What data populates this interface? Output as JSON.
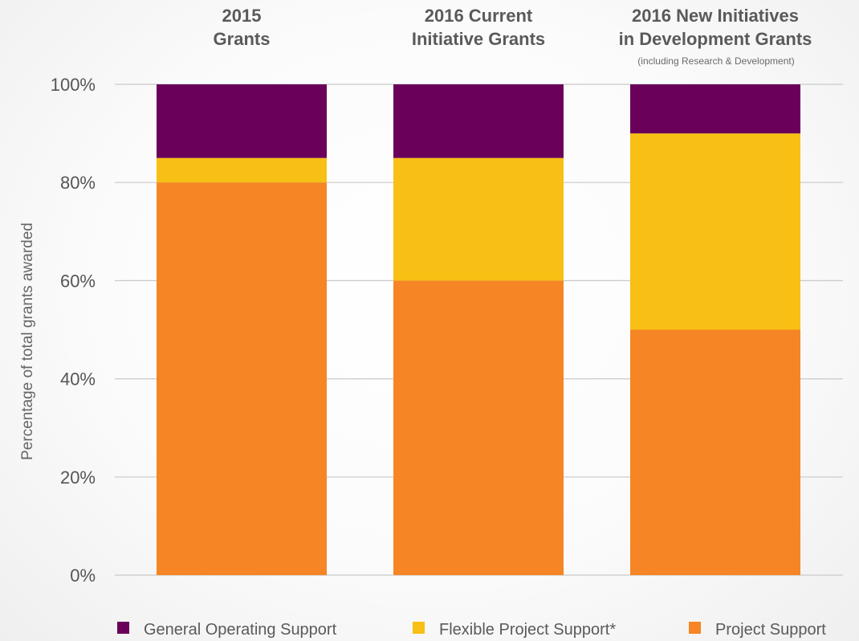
{
  "chart_data": {
    "type": "bar",
    "stacked": true,
    "categories": [
      {
        "lines": [
          "2015",
          "Grants"
        ],
        "note": ""
      },
      {
        "lines": [
          "2016 Current",
          "Initiative Grants"
        ],
        "note": ""
      },
      {
        "lines": [
          "2016 New Initiatives",
          "in Development Grants"
        ],
        "note": "(including Research & Development)"
      }
    ],
    "series": [
      {
        "name": "Project Support",
        "color": "#f58525",
        "values": [
          80,
          60,
          50
        ]
      },
      {
        "name": "Flexible Project Support*",
        "color": "#f8bf14",
        "values": [
          5,
          25,
          40
        ]
      },
      {
        "name": "General Operating Support",
        "color": "#6a005a",
        "values": [
          15,
          15,
          10
        ]
      }
    ],
    "legend_order": [
      "General Operating Support",
      "Flexible Project Support*",
      "Project Support"
    ],
    "ylabel": "Percentage of total grants awarded",
    "ylim": [
      0,
      100
    ],
    "yticks": [
      0,
      20,
      40,
      60,
      80,
      100
    ],
    "ytick_labels": [
      "0%",
      "20%",
      "40%",
      "60%",
      "80%",
      "100%"
    ],
    "grid": true,
    "legend_position": "bottom",
    "category_labels_position": "top"
  }
}
